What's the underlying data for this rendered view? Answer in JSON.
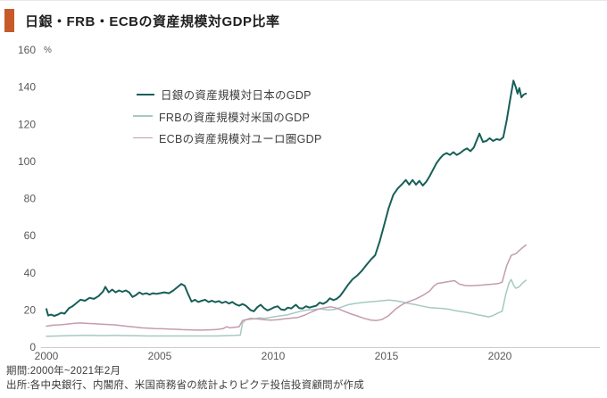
{
  "header": {
    "title": "日銀・FRB・ECBの資産規模対GDP比率",
    "accent_color": "#c75a2b"
  },
  "chart_data": {
    "type": "line",
    "title": "日銀・FRB・ECBの資産規模対GDP比率",
    "unit_label": "%",
    "xlabel": "",
    "ylabel": "%",
    "xlim": [
      2000,
      2021.5
    ],
    "ylim": [
      0,
      160
    ],
    "x_ticks": [
      2000,
      2005,
      2010,
      2015,
      2020
    ],
    "y_ticks": [
      0,
      20,
      40,
      60,
      80,
      100,
      120,
      140,
      160
    ],
    "grid": false,
    "legend_position": "upper-left-inside",
    "axis_line_color": "#cccccc",
    "series": [
      {
        "name": "日銀の資産規模対日本のGDP",
        "color": "#175f58",
        "stroke_width": 2,
        "points": [
          [
            2000.0,
            20.5
          ],
          [
            2000.08,
            17
          ],
          [
            2000.2,
            17.5
          ],
          [
            2000.35,
            16.8
          ],
          [
            2000.5,
            17.5
          ],
          [
            2000.65,
            18.5
          ],
          [
            2000.8,
            18
          ],
          [
            2001.0,
            21
          ],
          [
            2001.15,
            22
          ],
          [
            2001.3,
            23.5
          ],
          [
            2001.5,
            25.5
          ],
          [
            2001.7,
            25
          ],
          [
            2001.9,
            26.5
          ],
          [
            2002.1,
            26
          ],
          [
            2002.3,
            27.5
          ],
          [
            2002.5,
            30
          ],
          [
            2002.6,
            32.5
          ],
          [
            2002.75,
            29.5
          ],
          [
            2002.9,
            31
          ],
          [
            2003.05,
            29.5
          ],
          [
            2003.2,
            30.5
          ],
          [
            2003.35,
            29.8
          ],
          [
            2003.5,
            30.5
          ],
          [
            2003.65,
            29.5
          ],
          [
            2003.8,
            27
          ],
          [
            2003.95,
            28
          ],
          [
            2004.1,
            29.5
          ],
          [
            2004.25,
            28.5
          ],
          [
            2004.4,
            29
          ],
          [
            2004.55,
            28.3
          ],
          [
            2004.7,
            29
          ],
          [
            2004.85,
            28.7
          ],
          [
            2005.0,
            29
          ],
          [
            2005.2,
            29.5
          ],
          [
            2005.4,
            29
          ],
          [
            2005.6,
            30.5
          ],
          [
            2005.8,
            32.5
          ],
          [
            2005.95,
            34
          ],
          [
            2006.1,
            33
          ],
          [
            2006.25,
            28.5
          ],
          [
            2006.4,
            24.5
          ],
          [
            2006.55,
            25.5
          ],
          [
            2006.7,
            24.3
          ],
          [
            2006.85,
            25
          ],
          [
            2007.0,
            25.5
          ],
          [
            2007.15,
            24.3
          ],
          [
            2007.3,
            25
          ],
          [
            2007.45,
            24.2
          ],
          [
            2007.6,
            24.8
          ],
          [
            2007.75,
            23.8
          ],
          [
            2007.9,
            24.5
          ],
          [
            2008.05,
            23.5
          ],
          [
            2008.2,
            24.3
          ],
          [
            2008.35,
            23
          ],
          [
            2008.5,
            22.3
          ],
          [
            2008.65,
            23.2
          ],
          [
            2008.8,
            22.3
          ],
          [
            2009.0,
            20
          ],
          [
            2009.15,
            19.3
          ],
          [
            2009.3,
            21.5
          ],
          [
            2009.45,
            22.8
          ],
          [
            2009.6,
            21
          ],
          [
            2009.75,
            19.8
          ],
          [
            2009.9,
            20.5
          ],
          [
            2010.05,
            21.5
          ],
          [
            2010.2,
            22
          ],
          [
            2010.35,
            20.3
          ],
          [
            2010.5,
            20
          ],
          [
            2010.65,
            21.3
          ],
          [
            2010.8,
            20.8
          ],
          [
            2011.0,
            22.8
          ],
          [
            2011.15,
            21
          ],
          [
            2011.3,
            20.8
          ],
          [
            2011.45,
            22
          ],
          [
            2011.6,
            21.3
          ],
          [
            2011.75,
            21.8
          ],
          [
            2011.9,
            22.3
          ],
          [
            2012.05,
            24
          ],
          [
            2012.2,
            23.3
          ],
          [
            2012.35,
            24.3
          ],
          [
            2012.5,
            26.3
          ],
          [
            2012.65,
            25.3
          ],
          [
            2012.8,
            26
          ],
          [
            2012.95,
            27.5
          ],
          [
            2013.1,
            30
          ],
          [
            2013.3,
            33.5
          ],
          [
            2013.5,
            36.5
          ],
          [
            2013.7,
            38.5
          ],
          [
            2013.9,
            41
          ],
          [
            2014.1,
            44
          ],
          [
            2014.3,
            47
          ],
          [
            2014.5,
            49.5
          ],
          [
            2014.7,
            57
          ],
          [
            2014.9,
            66
          ],
          [
            2015.1,
            75
          ],
          [
            2015.3,
            82
          ],
          [
            2015.5,
            85.5
          ],
          [
            2015.7,
            88
          ],
          [
            2015.85,
            90
          ],
          [
            2016.0,
            87.5
          ],
          [
            2016.15,
            90
          ],
          [
            2016.3,
            87.5
          ],
          [
            2016.45,
            89.5
          ],
          [
            2016.6,
            87
          ],
          [
            2016.75,
            89
          ],
          [
            2016.9,
            92
          ],
          [
            2017.05,
            95.5
          ],
          [
            2017.2,
            99
          ],
          [
            2017.35,
            101.5
          ],
          [
            2017.5,
            103.5
          ],
          [
            2017.65,
            104.5
          ],
          [
            2017.8,
            103.5
          ],
          [
            2017.95,
            105
          ],
          [
            2018.1,
            103.5
          ],
          [
            2018.25,
            104.5
          ],
          [
            2018.4,
            106
          ],
          [
            2018.55,
            107
          ],
          [
            2018.7,
            105.5
          ],
          [
            2018.85,
            107.5
          ],
          [
            2019.0,
            112
          ],
          [
            2019.1,
            115
          ],
          [
            2019.25,
            110.5
          ],
          [
            2019.4,
            111
          ],
          [
            2019.55,
            112.5
          ],
          [
            2019.7,
            111
          ],
          [
            2019.85,
            112
          ],
          [
            2020.0,
            111.5
          ],
          [
            2020.15,
            113
          ],
          [
            2020.3,
            122
          ],
          [
            2020.45,
            133
          ],
          [
            2020.6,
            143.5
          ],
          [
            2020.7,
            140
          ],
          [
            2020.78,
            136.5
          ],
          [
            2020.86,
            139.5
          ],
          [
            2020.95,
            134.5
          ],
          [
            2021.05,
            136
          ],
          [
            2021.15,
            136.5
          ]
        ]
      },
      {
        "name": "FRBの資産規模対米国のGDP",
        "color": "#a5c9c3",
        "stroke_width": 1.5,
        "points": [
          [
            2000.0,
            5.8
          ],
          [
            2000.5,
            6
          ],
          [
            2001.0,
            6.2
          ],
          [
            2001.5,
            6.3
          ],
          [
            2002.0,
            6.3
          ],
          [
            2002.5,
            6.2
          ],
          [
            2003.0,
            6.3
          ],
          [
            2003.5,
            6.2
          ],
          [
            2004.0,
            6.1
          ],
          [
            2004.5,
            6
          ],
          [
            2005.0,
            6
          ],
          [
            2005.5,
            6
          ],
          [
            2006.0,
            6
          ],
          [
            2006.5,
            6
          ],
          [
            2007.0,
            6
          ],
          [
            2007.5,
            6
          ],
          [
            2008.0,
            6.2
          ],
          [
            2008.3,
            6.3
          ],
          [
            2008.55,
            6.5
          ],
          [
            2008.65,
            13
          ],
          [
            2008.8,
            14.8
          ],
          [
            2009.0,
            15
          ],
          [
            2009.2,
            15.3
          ],
          [
            2009.4,
            15.8
          ],
          [
            2009.6,
            15.5
          ],
          [
            2009.8,
            15.8
          ],
          [
            2010.0,
            16.3
          ],
          [
            2010.3,
            16.8
          ],
          [
            2010.6,
            17.3
          ],
          [
            2010.9,
            18.3
          ],
          [
            2011.2,
            19.3
          ],
          [
            2011.5,
            20
          ],
          [
            2011.8,
            20.3
          ],
          [
            2012.1,
            20.6
          ],
          [
            2012.4,
            20
          ],
          [
            2012.7,
            20.3
          ],
          [
            2013.0,
            21.5
          ],
          [
            2013.3,
            22.8
          ],
          [
            2013.6,
            23.5
          ],
          [
            2013.9,
            24
          ],
          [
            2014.2,
            24.3
          ],
          [
            2014.5,
            24.6
          ],
          [
            2014.8,
            25
          ],
          [
            2015.1,
            25.3
          ],
          [
            2015.4,
            25
          ],
          [
            2015.7,
            24.3
          ],
          [
            2016.0,
            23.5
          ],
          [
            2016.3,
            22.8
          ],
          [
            2016.6,
            22
          ],
          [
            2016.9,
            21.3
          ],
          [
            2017.2,
            21
          ],
          [
            2017.5,
            20.8
          ],
          [
            2017.8,
            20.3
          ],
          [
            2018.1,
            19.5
          ],
          [
            2018.4,
            19
          ],
          [
            2018.7,
            18.3
          ],
          [
            2019.0,
            17.5
          ],
          [
            2019.3,
            16.8
          ],
          [
            2019.5,
            16.3
          ],
          [
            2019.7,
            17
          ],
          [
            2019.9,
            18.3
          ],
          [
            2020.1,
            19.3
          ],
          [
            2020.25,
            28
          ],
          [
            2020.4,
            34.5
          ],
          [
            2020.5,
            36.4
          ],
          [
            2020.6,
            33.5
          ],
          [
            2020.7,
            31.7
          ],
          [
            2020.85,
            32.5
          ],
          [
            2021.0,
            34.5
          ],
          [
            2021.15,
            36
          ]
        ]
      },
      {
        "name": "ECBの資産規模対ユーロ圏GDP",
        "color": "#c49cad",
        "stroke_width": 1.5,
        "points": [
          [
            2000.0,
            11.3
          ],
          [
            2000.3,
            11.8
          ],
          [
            2000.6,
            12
          ],
          [
            2000.9,
            12.4
          ],
          [
            2001.2,
            12.8
          ],
          [
            2001.5,
            13
          ],
          [
            2001.8,
            12.8
          ],
          [
            2002.1,
            12.6
          ],
          [
            2002.4,
            12.4
          ],
          [
            2002.7,
            12.2
          ],
          [
            2003.0,
            12
          ],
          [
            2003.3,
            11.6
          ],
          [
            2003.6,
            11.2
          ],
          [
            2003.9,
            10.8
          ],
          [
            2004.2,
            10.4
          ],
          [
            2004.5,
            10.2
          ],
          [
            2004.8,
            10
          ],
          [
            2005.1,
            9.9
          ],
          [
            2005.4,
            9.7
          ],
          [
            2005.7,
            9.6
          ],
          [
            2006.0,
            9.4
          ],
          [
            2006.3,
            9.3
          ],
          [
            2006.6,
            9.2
          ],
          [
            2006.9,
            9.2
          ],
          [
            2007.2,
            9.3
          ],
          [
            2007.5,
            9.5
          ],
          [
            2007.8,
            10
          ],
          [
            2007.95,
            11
          ],
          [
            2008.1,
            10.4
          ],
          [
            2008.3,
            10.7
          ],
          [
            2008.5,
            11
          ],
          [
            2008.65,
            14.3
          ],
          [
            2008.8,
            14.8
          ],
          [
            2009.0,
            15.5
          ],
          [
            2009.3,
            15.2
          ],
          [
            2009.6,
            14.8
          ],
          [
            2009.9,
            14.5
          ],
          [
            2010.2,
            14.8
          ],
          [
            2010.5,
            15.3
          ],
          [
            2010.8,
            15.6
          ],
          [
            2011.1,
            16
          ],
          [
            2011.4,
            17.3
          ],
          [
            2011.7,
            19
          ],
          [
            2012.0,
            20.5
          ],
          [
            2012.3,
            21.3
          ],
          [
            2012.55,
            21.7
          ],
          [
            2012.8,
            21
          ],
          [
            2013.1,
            19.5
          ],
          [
            2013.4,
            18
          ],
          [
            2013.7,
            16.8
          ],
          [
            2014.0,
            15.5
          ],
          [
            2014.3,
            14.6
          ],
          [
            2014.55,
            14.3
          ],
          [
            2014.8,
            14.9
          ],
          [
            2015.1,
            17
          ],
          [
            2015.4,
            20.5
          ],
          [
            2015.7,
            23
          ],
          [
            2016.0,
            24.6
          ],
          [
            2016.3,
            26
          ],
          [
            2016.6,
            27.8
          ],
          [
            2016.9,
            30.2
          ],
          [
            2017.1,
            33
          ],
          [
            2017.25,
            34.3
          ],
          [
            2017.5,
            34.8
          ],
          [
            2017.75,
            35.3
          ],
          [
            2018.0,
            35.8
          ],
          [
            2018.2,
            34
          ],
          [
            2018.45,
            33.2
          ],
          [
            2018.7,
            33
          ],
          [
            2018.95,
            33.2
          ],
          [
            2019.2,
            33.4
          ],
          [
            2019.45,
            33.7
          ],
          [
            2019.7,
            33.9
          ],
          [
            2019.95,
            34.3
          ],
          [
            2020.1,
            35
          ],
          [
            2020.3,
            43.8
          ],
          [
            2020.5,
            49.4
          ],
          [
            2020.7,
            50.3
          ],
          [
            2020.9,
            52.5
          ],
          [
            2021.15,
            55
          ]
        ]
      }
    ]
  },
  "footer": {
    "period_line": "期間:2000年~2021年2月",
    "source_line": "出所:各中央銀行、内閣府、米国商務省の統計よりピクテ投信投資顧問が作成"
  }
}
